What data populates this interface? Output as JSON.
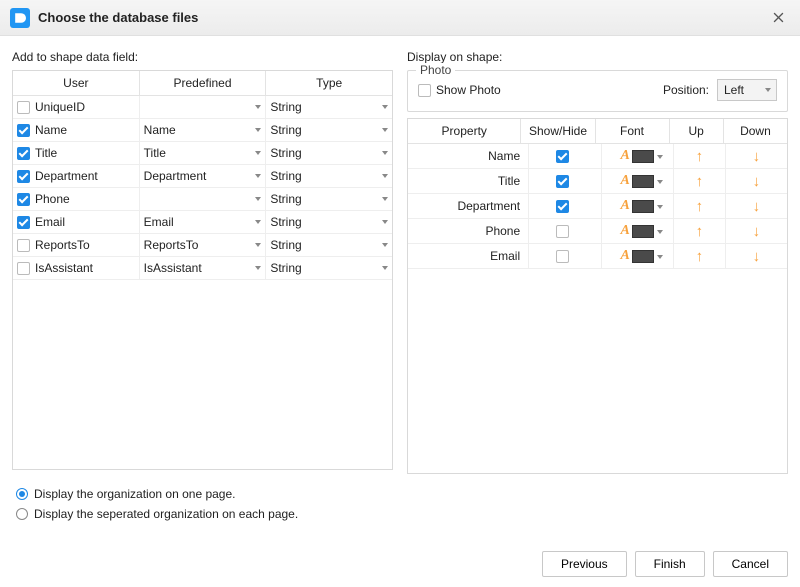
{
  "title": "Choose the database files",
  "left": {
    "label": "Add to shape data field:",
    "headers": [
      "User",
      "Predefined",
      "Type"
    ],
    "rows": [
      {
        "checked": false,
        "user": "UniqueID",
        "predef": "",
        "type": "String"
      },
      {
        "checked": true,
        "user": "Name",
        "predef": "Name",
        "type": "String"
      },
      {
        "checked": true,
        "user": "Title",
        "predef": "Title",
        "type": "String"
      },
      {
        "checked": true,
        "user": "Department",
        "predef": "Department",
        "type": "String"
      },
      {
        "checked": true,
        "user": "Phone",
        "predef": "",
        "type": "String"
      },
      {
        "checked": true,
        "user": "Email",
        "predef": "Email",
        "type": "String"
      },
      {
        "checked": false,
        "user": "ReportsTo",
        "predef": "ReportsTo",
        "type": "String"
      },
      {
        "checked": false,
        "user": "IsAssistant",
        "predef": "IsAssistant",
        "type": "String"
      }
    ]
  },
  "right": {
    "label": "Display on shape:",
    "photo": {
      "legend": "Photo",
      "showPhoto": {
        "label": "Show Photo",
        "checked": false
      },
      "positionLabel": "Position:",
      "positionValue": "Left"
    },
    "headers": [
      "Property",
      "Show/Hide",
      "Font",
      "Up",
      "Down"
    ],
    "rows": [
      {
        "prop": "Name",
        "show": true,
        "swatch": "#4a4a4a"
      },
      {
        "prop": "Title",
        "show": true,
        "swatch": "#4a4a4a"
      },
      {
        "prop": "Department",
        "show": true,
        "swatch": "#4a4a4a"
      },
      {
        "prop": "Phone",
        "show": false,
        "swatch": "#4a4a4a"
      },
      {
        "prop": "Email",
        "show": false,
        "swatch": "#4a4a4a"
      }
    ]
  },
  "radios": {
    "opt1": "Display the organization on one page.",
    "opt2": "Display the seperated organization on each page.",
    "selected": 0
  },
  "buttons": {
    "prev": "Previous",
    "finish": "Finish",
    "cancel": "Cancel"
  },
  "colors": {
    "accent": "#1e88e5",
    "orange": "#f7a13c",
    "border": "#d9d9d9"
  }
}
